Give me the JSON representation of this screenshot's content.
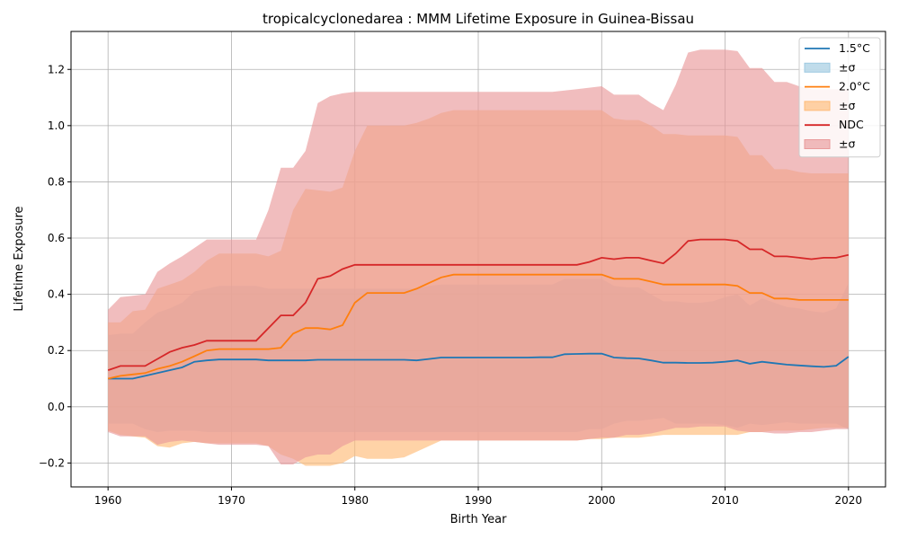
{
  "chart_data": {
    "type": "line",
    "title": "tropicalcyclonedarea : MMM Lifetime Exposure in Guinea-Bissau",
    "xlabel": "Birth Year",
    "ylabel": "Lifetime Exposure",
    "xlim": [
      1957,
      2023
    ],
    "ylim": [
      -0.285,
      1.335
    ],
    "xticks": [
      1960,
      1970,
      1980,
      1990,
      2000,
      2010,
      2020
    ],
    "yticks": [
      -0.2,
      0.0,
      0.2,
      0.4,
      0.6,
      0.8,
      1.0,
      1.2
    ],
    "grid": true,
    "legend_position": "top-right",
    "x": [
      1960,
      1961,
      1962,
      1963,
      1964,
      1965,
      1966,
      1967,
      1968,
      1969,
      1970,
      1971,
      1972,
      1973,
      1974,
      1975,
      1976,
      1977,
      1978,
      1979,
      1980,
      1981,
      1982,
      1983,
      1984,
      1985,
      1986,
      1987,
      1988,
      1989,
      1990,
      1991,
      1992,
      1993,
      1994,
      1995,
      1996,
      1997,
      1998,
      1999,
      2000,
      2001,
      2002,
      2003,
      2004,
      2005,
      2006,
      2007,
      2008,
      2009,
      2010,
      2011,
      2012,
      2013,
      2014,
      2015,
      2016,
      2017,
      2018,
      2019,
      2020
    ],
    "series": [
      {
        "name": "1.5°C",
        "band_label": "±σ",
        "color": "#1f77b4",
        "band_color": "#9ecae1",
        "values": [
          0.1,
          0.1,
          0.1,
          0.11,
          0.12,
          0.13,
          0.14,
          0.16,
          0.165,
          0.168,
          0.168,
          0.168,
          0.168,
          0.165,
          0.165,
          0.165,
          0.165,
          0.167,
          0.167,
          0.167,
          0.167,
          0.167,
          0.167,
          0.167,
          0.167,
          0.165,
          0.17,
          0.175,
          0.175,
          0.175,
          0.175,
          0.175,
          0.175,
          0.175,
          0.175,
          0.176,
          0.176,
          0.187,
          0.188,
          0.189,
          0.189,
          0.175,
          0.173,
          0.172,
          0.165,
          0.157,
          0.157,
          0.156,
          0.156,
          0.157,
          0.16,
          0.165,
          0.153,
          0.16,
          0.155,
          0.15,
          0.147,
          0.144,
          0.142,
          0.146,
          0.178
        ],
        "upper": [
          0.255,
          0.26,
          0.26,
          0.3,
          0.335,
          0.35,
          0.37,
          0.41,
          0.42,
          0.43,
          0.43,
          0.43,
          0.43,
          0.42,
          0.42,
          0.42,
          0.42,
          0.42,
          0.42,
          0.42,
          0.42,
          0.42,
          0.42,
          0.42,
          0.42,
          0.42,
          0.43,
          0.435,
          0.435,
          0.435,
          0.435,
          0.435,
          0.435,
          0.435,
          0.435,
          0.435,
          0.435,
          0.455,
          0.455,
          0.455,
          0.455,
          0.43,
          0.425,
          0.425,
          0.4,
          0.375,
          0.375,
          0.37,
          0.37,
          0.375,
          0.39,
          0.4,
          0.36,
          0.385,
          0.37,
          0.355,
          0.35,
          0.34,
          0.335,
          0.35,
          0.44
        ],
        "lower": [
          -0.06,
          -0.06,
          -0.06,
          -0.08,
          -0.09,
          -0.085,
          -0.085,
          -0.085,
          -0.09,
          -0.09,
          -0.09,
          -0.09,
          -0.09,
          -0.09,
          -0.09,
          -0.09,
          -0.09,
          -0.09,
          -0.09,
          -0.09,
          -0.09,
          -0.09,
          -0.09,
          -0.09,
          -0.09,
          -0.09,
          -0.09,
          -0.09,
          -0.09,
          -0.09,
          -0.09,
          -0.09,
          -0.09,
          -0.09,
          -0.09,
          -0.09,
          -0.09,
          -0.09,
          -0.09,
          -0.08,
          -0.08,
          -0.06,
          -0.05,
          -0.05,
          -0.045,
          -0.04,
          -0.06,
          -0.06,
          -0.06,
          -0.06,
          -0.065,
          -0.075,
          -0.06,
          -0.065,
          -0.06,
          -0.055,
          -0.06,
          -0.06,
          -0.06,
          -0.06,
          -0.08
        ]
      },
      {
        "name": "2.0°C",
        "band_label": "±σ",
        "color": "#ff7f0e",
        "band_color": "#ffbb78",
        "values": [
          0.1,
          0.11,
          0.115,
          0.12,
          0.135,
          0.145,
          0.16,
          0.18,
          0.2,
          0.205,
          0.205,
          0.205,
          0.205,
          0.205,
          0.21,
          0.26,
          0.28,
          0.28,
          0.275,
          0.29,
          0.37,
          0.405,
          0.405,
          0.405,
          0.405,
          0.42,
          0.44,
          0.46,
          0.47,
          0.47,
          0.47,
          0.47,
          0.47,
          0.47,
          0.47,
          0.47,
          0.47,
          0.47,
          0.47,
          0.47,
          0.47,
          0.455,
          0.455,
          0.455,
          0.445,
          0.435,
          0.435,
          0.435,
          0.435,
          0.435,
          0.435,
          0.43,
          0.405,
          0.405,
          0.385,
          0.385,
          0.38,
          0.38,
          0.38,
          0.38,
          0.38
        ],
        "upper": [
          0.3,
          0.3,
          0.34,
          0.345,
          0.42,
          0.435,
          0.45,
          0.48,
          0.52,
          0.545,
          0.545,
          0.545,
          0.545,
          0.535,
          0.555,
          0.7,
          0.775,
          0.77,
          0.765,
          0.78,
          0.91,
          1.0,
          1.0,
          1.0,
          1.0,
          1.01,
          1.025,
          1.045,
          1.055,
          1.055,
          1.055,
          1.055,
          1.055,
          1.055,
          1.055,
          1.055,
          1.055,
          1.055,
          1.055,
          1.055,
          1.055,
          1.025,
          1.02,
          1.02,
          1.0,
          0.97,
          0.97,
          0.965,
          0.965,
          0.965,
          0.965,
          0.96,
          0.895,
          0.895,
          0.845,
          0.845,
          0.835,
          0.83,
          0.83,
          0.83,
          0.83
        ],
        "lower": [
          -0.085,
          -0.1,
          -0.105,
          -0.11,
          -0.14,
          -0.145,
          -0.13,
          -0.125,
          -0.13,
          -0.13,
          -0.13,
          -0.13,
          -0.13,
          -0.14,
          -0.17,
          -0.185,
          -0.21,
          -0.21,
          -0.21,
          -0.2,
          -0.175,
          -0.185,
          -0.185,
          -0.185,
          -0.18,
          -0.16,
          -0.14,
          -0.12,
          -0.12,
          -0.12,
          -0.12,
          -0.12,
          -0.12,
          -0.12,
          -0.12,
          -0.12,
          -0.12,
          -0.12,
          -0.12,
          -0.115,
          -0.115,
          -0.11,
          -0.11,
          -0.11,
          -0.105,
          -0.1,
          -0.1,
          -0.1,
          -0.1,
          -0.1,
          -0.1,
          -0.1,
          -0.09,
          -0.09,
          -0.085,
          -0.085,
          -0.085,
          -0.08,
          -0.075,
          -0.075,
          -0.075
        ]
      },
      {
        "name": "NDC",
        "band_label": "±σ",
        "color": "#d62728",
        "band_color": "#e99a9b",
        "values": [
          0.13,
          0.145,
          0.145,
          0.145,
          0.17,
          0.195,
          0.21,
          0.22,
          0.235,
          0.235,
          0.235,
          0.235,
          0.235,
          0.28,
          0.325,
          0.325,
          0.37,
          0.455,
          0.465,
          0.49,
          0.505,
          0.505,
          0.505,
          0.505,
          0.505,
          0.505,
          0.505,
          0.505,
          0.505,
          0.505,
          0.505,
          0.505,
          0.505,
          0.505,
          0.505,
          0.505,
          0.505,
          0.505,
          0.505,
          0.515,
          0.53,
          0.525,
          0.53,
          0.53,
          0.52,
          0.51,
          0.545,
          0.59,
          0.595,
          0.595,
          0.595,
          0.59,
          0.56,
          0.56,
          0.535,
          0.535,
          0.53,
          0.525,
          0.53,
          0.53,
          0.54
        ],
        "upper": [
          0.345,
          0.39,
          0.395,
          0.4,
          0.48,
          0.51,
          0.535,
          0.565,
          0.595,
          0.595,
          0.595,
          0.595,
          0.595,
          0.7,
          0.85,
          0.85,
          0.91,
          1.08,
          1.105,
          1.115,
          1.12,
          1.12,
          1.12,
          1.12,
          1.12,
          1.12,
          1.12,
          1.12,
          1.12,
          1.12,
          1.12,
          1.12,
          1.12,
          1.12,
          1.12,
          1.12,
          1.12,
          1.125,
          1.13,
          1.135,
          1.14,
          1.11,
          1.11,
          1.11,
          1.08,
          1.055,
          1.145,
          1.26,
          1.27,
          1.27,
          1.27,
          1.265,
          1.205,
          1.205,
          1.155,
          1.155,
          1.14,
          1.13,
          1.13,
          1.13,
          1.13
        ],
        "lower": [
          -0.09,
          -0.105,
          -0.105,
          -0.105,
          -0.135,
          -0.125,
          -0.12,
          -0.125,
          -0.13,
          -0.135,
          -0.135,
          -0.135,
          -0.135,
          -0.14,
          -0.205,
          -0.205,
          -0.18,
          -0.17,
          -0.17,
          -0.14,
          -0.12,
          -0.12,
          -0.12,
          -0.12,
          -0.12,
          -0.12,
          -0.12,
          -0.12,
          -0.12,
          -0.12,
          -0.12,
          -0.12,
          -0.12,
          -0.12,
          -0.12,
          -0.12,
          -0.12,
          -0.12,
          -0.12,
          -0.115,
          -0.11,
          -0.11,
          -0.1,
          -0.1,
          -0.095,
          -0.085,
          -0.075,
          -0.075,
          -0.07,
          -0.07,
          -0.07,
          -0.085,
          -0.09,
          -0.09,
          -0.095,
          -0.095,
          -0.09,
          -0.09,
          -0.085,
          -0.08,
          -0.08
        ]
      }
    ]
  }
}
